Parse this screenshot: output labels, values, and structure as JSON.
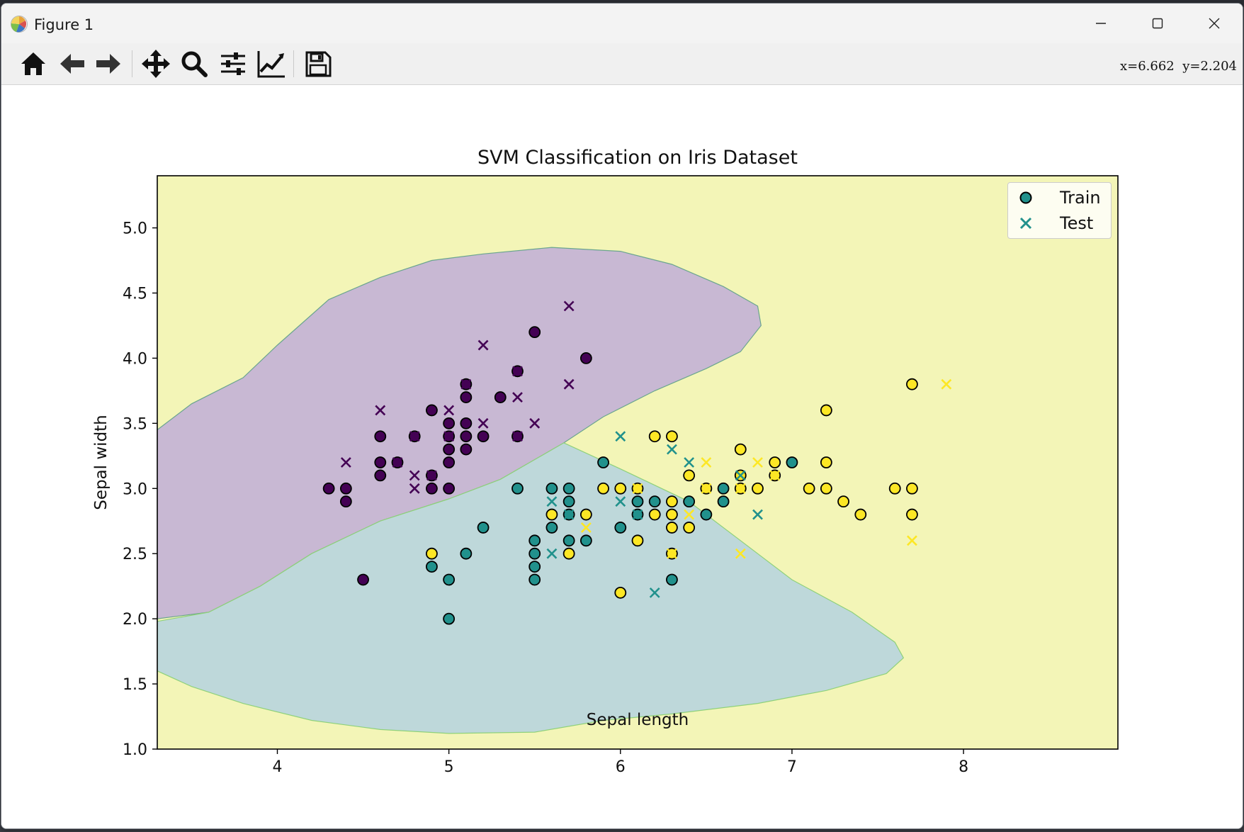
{
  "window": {
    "title": "Figure 1",
    "coords_readout": "x=6.662  y=2.204"
  },
  "toolbar": {
    "buttons": [
      "home",
      "back",
      "forward",
      "pan",
      "zoom",
      "configure-subplots",
      "edit-axis",
      "save"
    ]
  },
  "chart_data": {
    "type": "scatter",
    "title": "SVM Classification on Iris Dataset",
    "xlabel": "Sepal length",
    "ylabel": "Sepal width",
    "xlim": [
      3.3,
      8.9
    ],
    "ylim": [
      1.0,
      5.4
    ],
    "xticks": [
      "4",
      "5",
      "6",
      "7",
      "8"
    ],
    "yticks": [
      "1.0",
      "1.5",
      "2.0",
      "2.5",
      "3.0",
      "3.5",
      "4.0",
      "4.5",
      "5.0"
    ],
    "legend": {
      "position": "upper right",
      "entries": [
        "Train",
        "Test"
      ]
    },
    "class_colors": [
      "#440154",
      "#21918c",
      "#fde725"
    ],
    "region_colors": [
      "#c8b8d3",
      "#bed8da",
      "#f3f5b7"
    ],
    "decision_regions": {
      "class0_boundary": [
        [
          3.3,
          3.45
        ],
        [
          3.5,
          3.65
        ],
        [
          3.8,
          3.85
        ],
        [
          4.0,
          4.1
        ],
        [
          4.3,
          4.45
        ],
        [
          4.6,
          4.62
        ],
        [
          4.9,
          4.75
        ],
        [
          5.2,
          4.8
        ],
        [
          5.6,
          4.85
        ],
        [
          6.0,
          4.82
        ],
        [
          6.3,
          4.72
        ],
        [
          6.6,
          4.55
        ],
        [
          6.8,
          4.4
        ],
        [
          6.82,
          4.25
        ],
        [
          6.7,
          4.05
        ],
        [
          6.5,
          3.92
        ],
        [
          6.2,
          3.75
        ],
        [
          5.9,
          3.55
        ],
        [
          5.67,
          3.35
        ],
        [
          5.3,
          3.07
        ],
        [
          5.0,
          2.92
        ],
        [
          4.6,
          2.75
        ],
        [
          4.2,
          2.5
        ],
        [
          3.9,
          2.25
        ],
        [
          3.6,
          2.05
        ],
        [
          3.3,
          2.0
        ]
      ],
      "class1_boundary": [
        [
          3.3,
          1.98
        ],
        [
          3.6,
          2.05
        ],
        [
          3.9,
          2.25
        ],
        [
          4.2,
          2.5
        ],
        [
          4.6,
          2.75
        ],
        [
          5.0,
          2.92
        ],
        [
          5.3,
          3.07
        ],
        [
          5.67,
          3.35
        ],
        [
          6.0,
          3.15
        ],
        [
          6.4,
          2.9
        ],
        [
          6.7,
          2.6
        ],
        [
          7.0,
          2.3
        ],
        [
          7.35,
          2.05
        ],
        [
          7.6,
          1.82
        ],
        [
          7.65,
          1.7
        ],
        [
          7.55,
          1.58
        ],
        [
          7.2,
          1.45
        ],
        [
          6.8,
          1.35
        ],
        [
          6.3,
          1.27
        ],
        [
          5.9,
          1.22
        ],
        [
          5.5,
          1.13
        ],
        [
          5.0,
          1.12
        ],
        [
          4.6,
          1.15
        ],
        [
          4.2,
          1.22
        ],
        [
          3.8,
          1.35
        ],
        [
          3.5,
          1.48
        ],
        [
          3.3,
          1.6
        ]
      ]
    },
    "series": [
      {
        "name": "Train",
        "marker": "circle",
        "points": [
          [
            4.3,
            3.0,
            0
          ],
          [
            4.4,
            3.0,
            0
          ],
          [
            4.4,
            2.9,
            0
          ],
          [
            4.5,
            2.3,
            0
          ],
          [
            4.6,
            3.4,
            0
          ],
          [
            4.6,
            3.2,
            0
          ],
          [
            4.6,
            3.1,
            0
          ],
          [
            4.7,
            3.2,
            0
          ],
          [
            4.8,
            3.4,
            0
          ],
          [
            4.9,
            3.6,
            0
          ],
          [
            4.9,
            3.1,
            0
          ],
          [
            4.9,
            3.0,
            0
          ],
          [
            5.0,
            3.5,
            0
          ],
          [
            5.0,
            3.4,
            0
          ],
          [
            5.0,
            3.3,
            0
          ],
          [
            5.0,
            3.2,
            0
          ],
          [
            5.0,
            3.0,
            0
          ],
          [
            5.1,
            3.8,
            0
          ],
          [
            5.1,
            3.7,
            0
          ],
          [
            5.1,
            3.5,
            0
          ],
          [
            5.1,
            3.4,
            0
          ],
          [
            5.1,
            3.3,
            0
          ],
          [
            5.2,
            3.4,
            0
          ],
          [
            5.3,
            3.7,
            0
          ],
          [
            5.4,
            3.9,
            0
          ],
          [
            5.4,
            3.4,
            0
          ],
          [
            5.5,
            4.2,
            0
          ],
          [
            5.8,
            4.0,
            0
          ],
          [
            4.9,
            2.4,
            1
          ],
          [
            5.0,
            2.3,
            1
          ],
          [
            5.0,
            2.0,
            1
          ],
          [
            5.1,
            2.5,
            1
          ],
          [
            5.2,
            2.7,
            1
          ],
          [
            5.4,
            3.0,
            1
          ],
          [
            5.5,
            2.6,
            1
          ],
          [
            5.5,
            2.5,
            1
          ],
          [
            5.5,
            2.4,
            1
          ],
          [
            5.5,
            2.3,
            1
          ],
          [
            5.6,
            3.0,
            1
          ],
          [
            5.6,
            2.7,
            1
          ],
          [
            5.7,
            3.0,
            1
          ],
          [
            5.7,
            2.9,
            1
          ],
          [
            5.7,
            2.8,
            1
          ],
          [
            5.7,
            2.6,
            1
          ],
          [
            5.8,
            2.6,
            1
          ],
          [
            5.9,
            3.2,
            1
          ],
          [
            6.0,
            2.7,
            1
          ],
          [
            6.1,
            2.9,
            1
          ],
          [
            6.1,
            2.8,
            1
          ],
          [
            6.2,
            2.9,
            1
          ],
          [
            6.3,
            2.3,
            1
          ],
          [
            6.4,
            2.9,
            1
          ],
          [
            6.5,
            2.8,
            1
          ],
          [
            6.6,
            3.0,
            1
          ],
          [
            6.6,
            2.9,
            1
          ],
          [
            7.0,
            3.2,
            1
          ],
          [
            4.9,
            2.5,
            2
          ],
          [
            5.6,
            2.8,
            2
          ],
          [
            5.7,
            2.5,
            2
          ],
          [
            5.8,
            2.8,
            2
          ],
          [
            5.9,
            3.0,
            2
          ],
          [
            6.0,
            3.0,
            2
          ],
          [
            6.0,
            2.2,
            2
          ],
          [
            6.1,
            3.0,
            2
          ],
          [
            6.1,
            2.6,
            2
          ],
          [
            6.2,
            3.4,
            2
          ],
          [
            6.2,
            2.8,
            2
          ],
          [
            6.3,
            3.4,
            2
          ],
          [
            6.3,
            2.9,
            2
          ],
          [
            6.3,
            2.8,
            2
          ],
          [
            6.3,
            2.7,
            2
          ],
          [
            6.3,
            2.5,
            2
          ],
          [
            6.4,
            3.1,
            2
          ],
          [
            6.4,
            2.7,
            2
          ],
          [
            6.5,
            3.0,
            2
          ],
          [
            6.7,
            3.3,
            2
          ],
          [
            6.7,
            3.1,
            2
          ],
          [
            6.7,
            3.0,
            2
          ],
          [
            6.8,
            3.0,
            2
          ],
          [
            6.9,
            3.2,
            2
          ],
          [
            6.9,
            3.1,
            2
          ],
          [
            7.1,
            3.0,
            2
          ],
          [
            7.2,
            3.6,
            2
          ],
          [
            7.2,
            3.2,
            2
          ],
          [
            7.2,
            3.0,
            2
          ],
          [
            7.3,
            2.9,
            2
          ],
          [
            7.4,
            2.8,
            2
          ],
          [
            7.6,
            3.0,
            2
          ],
          [
            7.7,
            3.8,
            2
          ],
          [
            7.7,
            3.0,
            2
          ],
          [
            7.7,
            2.8,
            2
          ]
        ]
      },
      {
        "name": "Test",
        "marker": "x",
        "points": [
          [
            4.4,
            3.2,
            0
          ],
          [
            4.6,
            3.6,
            0
          ],
          [
            4.7,
            3.2,
            0
          ],
          [
            4.8,
            3.4,
            0
          ],
          [
            4.8,
            3.1,
            0
          ],
          [
            4.8,
            3.0,
            0
          ],
          [
            4.9,
            3.1,
            0
          ],
          [
            5.0,
            3.6,
            0
          ],
          [
            5.0,
            3.4,
            0
          ],
          [
            5.1,
            3.8,
            0
          ],
          [
            5.2,
            4.1,
            0
          ],
          [
            5.2,
            3.5,
            0
          ],
          [
            5.4,
            3.9,
            0
          ],
          [
            5.4,
            3.7,
            0
          ],
          [
            5.4,
            3.4,
            0
          ],
          [
            5.5,
            3.5,
            0
          ],
          [
            5.7,
            4.4,
            0
          ],
          [
            5.7,
            3.8,
            0
          ],
          [
            5.6,
            2.9,
            1
          ],
          [
            5.6,
            2.5,
            1
          ],
          [
            5.7,
            2.8,
            1
          ],
          [
            6.0,
            3.4,
            1
          ],
          [
            6.0,
            2.9,
            1
          ],
          [
            6.1,
            2.8,
            1
          ],
          [
            6.2,
            2.2,
            1
          ],
          [
            6.3,
            3.3,
            1
          ],
          [
            6.4,
            3.2,
            1
          ],
          [
            6.7,
            3.1,
            1
          ],
          [
            6.8,
            2.8,
            1
          ],
          [
            5.8,
            2.7,
            2
          ],
          [
            6.1,
            3.0,
            2
          ],
          [
            6.3,
            2.5,
            2
          ],
          [
            6.4,
            2.8,
            2
          ],
          [
            6.5,
            3.2,
            2
          ],
          [
            6.5,
            3.0,
            2
          ],
          [
            6.7,
            3.0,
            2
          ],
          [
            6.7,
            2.5,
            2
          ],
          [
            6.8,
            3.2,
            2
          ],
          [
            6.9,
            3.1,
            2
          ],
          [
            7.7,
            2.6,
            2
          ],
          [
            7.9,
            3.8,
            2
          ]
        ]
      }
    ]
  }
}
